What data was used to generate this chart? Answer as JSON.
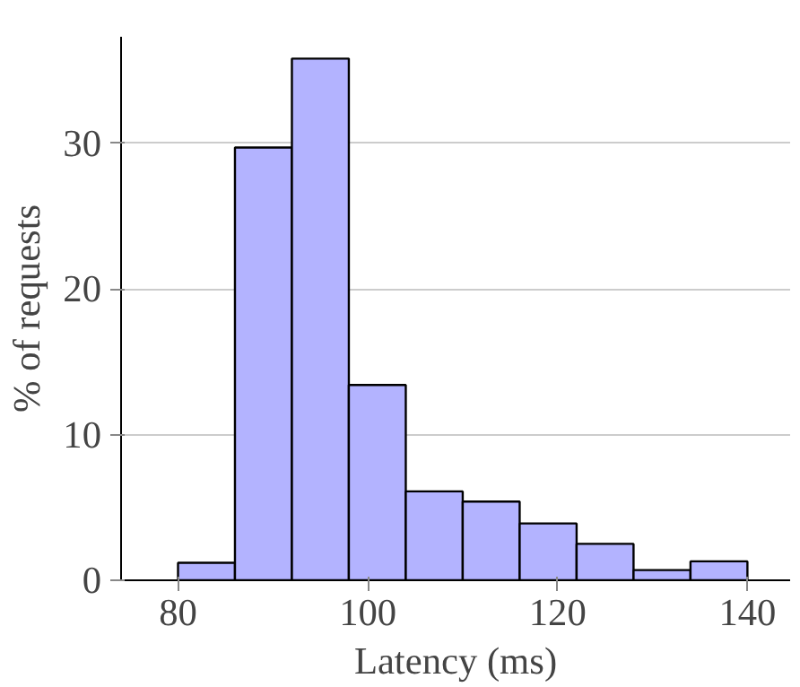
{
  "chart_data": {
    "type": "histogram",
    "xlabel": "Latency (ms)",
    "ylabel": "% of requests",
    "bins": [
      80,
      86,
      92,
      98,
      104,
      110,
      116,
      122,
      128,
      134,
      140
    ],
    "values": [
      1.2,
      29.7,
      35.8,
      13.4,
      6.1,
      5.4,
      3.9,
      2.5,
      0.7,
      1.3
    ],
    "color": "#b3b3ff",
    "xlim": [
      74,
      144.5
    ],
    "ylim": [
      0,
      37.3
    ],
    "xticks": [
      80,
      100,
      120,
      140
    ],
    "yticks": [
      0,
      10,
      20,
      30
    ],
    "grid": "y"
  }
}
